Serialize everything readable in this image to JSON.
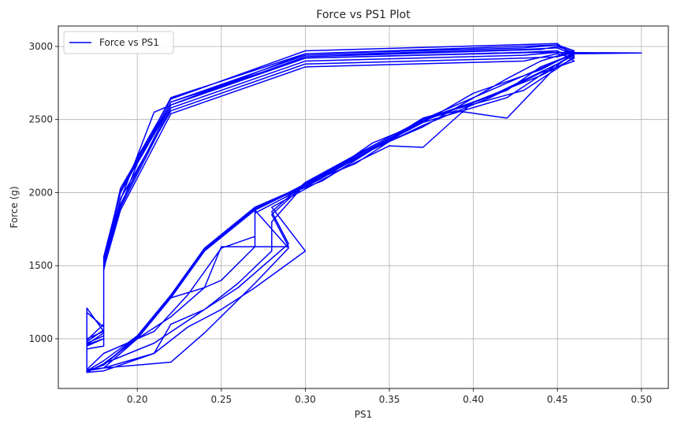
{
  "chart_data": {
    "type": "line",
    "title": "Force vs PS1 Plot",
    "xlabel": "PS1",
    "ylabel": "Force (g)",
    "xlim": [
      0.153,
      0.516
    ],
    "ylim": [
      660,
      3140
    ],
    "xticks": [
      0.2,
      0.25,
      0.3,
      0.35,
      0.4,
      0.45,
      0.5
    ],
    "xtick_labels": [
      "0.20",
      "0.25",
      "0.30",
      "0.35",
      "0.40",
      "0.45",
      "0.50"
    ],
    "yticks": [
      1000,
      1500,
      2000,
      2500,
      3000
    ],
    "ytick_labels": [
      "1000",
      "1500",
      "2000",
      "2500",
      "3000"
    ],
    "grid": true,
    "legend": {
      "position": "top-left",
      "entries": [
        "Force vs PS1"
      ]
    },
    "series": [
      {
        "name": "Force vs PS1",
        "color": "#0000ff",
        "points": [
          [
            0.17,
            780
          ],
          [
            0.17,
            960
          ],
          [
            0.18,
            1000
          ],
          [
            0.18,
            1500
          ],
          [
            0.19,
            1900
          ],
          [
            0.2,
            2200
          ],
          [
            0.22,
            2600
          ],
          [
            0.3,
            2950
          ],
          [
            0.45,
            3010
          ],
          [
            0.46,
            2950
          ],
          [
            0.45,
            2880
          ],
          [
            0.42,
            2650
          ],
          [
            0.37,
            2480
          ],
          [
            0.3,
            2060
          ],
          [
            0.27,
            1880
          ],
          [
            0.24,
            1600
          ],
          [
            0.22,
            1280
          ],
          [
            0.2,
            1000
          ],
          [
            0.18,
            830
          ],
          [
            0.17,
            770
          ],
          [
            0.17,
            800
          ],
          [
            0.17,
            1000
          ],
          [
            0.18,
            1050
          ],
          [
            0.18,
            1550
          ],
          [
            0.19,
            2000
          ],
          [
            0.2,
            2240
          ],
          [
            0.22,
            2640
          ],
          [
            0.3,
            2970
          ],
          [
            0.45,
            3020
          ],
          [
            0.46,
            2930
          ],
          [
            0.45,
            2850
          ],
          [
            0.43,
            2700
          ],
          [
            0.37,
            2510
          ],
          [
            0.31,
            2080
          ],
          [
            0.27,
            1900
          ],
          [
            0.24,
            1620
          ],
          [
            0.22,
            1300
          ],
          [
            0.2,
            1020
          ],
          [
            0.18,
            820
          ],
          [
            0.17,
            780
          ],
          [
            0.17,
            790
          ],
          [
            0.17,
            1210
          ],
          [
            0.18,
            1050
          ],
          [
            0.18,
            1520
          ],
          [
            0.19,
            2030
          ],
          [
            0.22,
            2620
          ],
          [
            0.3,
            2920
          ],
          [
            0.43,
            2960
          ],
          [
            0.45,
            2970
          ],
          [
            0.46,
            2900
          ],
          [
            0.44,
            2820
          ],
          [
            0.41,
            2650
          ],
          [
            0.37,
            2460
          ],
          [
            0.33,
            2240
          ],
          [
            0.3,
            2050
          ],
          [
            0.27,
            1880
          ],
          [
            0.29,
            1620
          ],
          [
            0.27,
            1380
          ],
          [
            0.24,
            1040
          ],
          [
            0.22,
            840
          ],
          [
            0.18,
            800
          ],
          [
            0.17,
            790
          ],
          [
            0.17,
            820
          ],
          [
            0.17,
            990
          ],
          [
            0.18,
            1100
          ],
          [
            0.18,
            1480
          ],
          [
            0.19,
            1880
          ],
          [
            0.22,
            2540
          ],
          [
            0.3,
            2860
          ],
          [
            0.43,
            2900
          ],
          [
            0.45,
            2950
          ],
          [
            0.46,
            2920
          ],
          [
            0.44,
            2800
          ],
          [
            0.4,
            2620
          ],
          [
            0.37,
            2310
          ],
          [
            0.35,
            2320
          ],
          [
            0.32,
            2150
          ],
          [
            0.28,
            1900
          ],
          [
            0.3,
            1600
          ],
          [
            0.27,
            1350
          ],
          [
            0.25,
            1200
          ],
          [
            0.23,
            1080
          ],
          [
            0.21,
            900
          ],
          [
            0.18,
            800
          ],
          [
            0.17,
            790
          ],
          [
            0.17,
            780
          ],
          [
            0.17,
            950
          ],
          [
            0.18,
            1000
          ],
          [
            0.18,
            1530
          ],
          [
            0.19,
            1950
          ],
          [
            0.21,
            2550
          ],
          [
            0.22,
            2600
          ],
          [
            0.3,
            2930
          ],
          [
            0.44,
            2980
          ],
          [
            0.45,
            3000
          ],
          [
            0.46,
            2960
          ],
          [
            0.45,
            2870
          ],
          [
            0.42,
            2510
          ],
          [
            0.39,
            2560
          ],
          [
            0.37,
            2500
          ],
          [
            0.34,
            2320
          ],
          [
            0.3,
            2070
          ],
          [
            0.28,
            1870
          ],
          [
            0.29,
            1650
          ],
          [
            0.26,
            1350
          ],
          [
            0.24,
            1200
          ],
          [
            0.21,
            970
          ],
          [
            0.18,
            830
          ],
          [
            0.17,
            770
          ],
          [
            0.17,
            800
          ],
          [
            0.17,
            980
          ],
          [
            0.18,
            1060
          ],
          [
            0.18,
            1560
          ],
          [
            0.19,
            2010
          ],
          [
            0.22,
            2650
          ],
          [
            0.3,
            2950
          ],
          [
            0.43,
            2990
          ],
          [
            0.45,
            3010
          ],
          [
            0.46,
            2970
          ],
          [
            0.44,
            2900
          ],
          [
            0.42,
            2780
          ],
          [
            0.37,
            2450
          ],
          [
            0.34,
            2300
          ],
          [
            0.31,
            2100
          ],
          [
            0.27,
            1900
          ],
          [
            0.27,
            1630
          ],
          [
            0.25,
            1400
          ],
          [
            0.24,
            1350
          ],
          [
            0.22,
            1150
          ],
          [
            0.2,
            1000
          ],
          [
            0.18,
            800
          ],
          [
            0.17,
            780
          ],
          [
            0.17,
            780
          ],
          [
            0.17,
            930
          ],
          [
            0.18,
            950
          ],
          [
            0.18,
            1480
          ],
          [
            0.19,
            1900
          ],
          [
            0.22,
            2580
          ],
          [
            0.3,
            2900
          ],
          [
            0.43,
            2940
          ],
          [
            0.45,
            2960
          ],
          [
            0.46,
            2950
          ],
          [
            0.44,
            2860
          ],
          [
            0.42,
            2700
          ],
          [
            0.37,
            2490
          ],
          [
            0.33,
            2250
          ],
          [
            0.3,
            2060
          ],
          [
            0.28,
            1800
          ],
          [
            0.28,
            1600
          ],
          [
            0.26,
            1380
          ],
          [
            0.24,
            1200
          ],
          [
            0.22,
            1100
          ],
          [
            0.21,
            900
          ],
          [
            0.18,
            780
          ],
          [
            0.17,
            770
          ],
          [
            0.17,
            770
          ],
          [
            0.17,
            1180
          ],
          [
            0.18,
            1080
          ],
          [
            0.18,
            1500
          ],
          [
            0.19,
            1920
          ],
          [
            0.22,
            2600
          ],
          [
            0.3,
            2920
          ],
          [
            0.44,
            2960
          ],
          [
            0.5,
            2955
          ],
          [
            0.46,
            2950
          ],
          [
            0.45,
            2900
          ],
          [
            0.43,
            2800
          ],
          [
            0.37,
            2500
          ],
          [
            0.33,
            2200
          ],
          [
            0.3,
            2060
          ],
          [
            0.28,
            1850
          ],
          [
            0.29,
            1630
          ],
          [
            0.25,
            1630
          ],
          [
            0.24,
            1350
          ],
          [
            0.22,
            1280
          ],
          [
            0.2,
            1020
          ],
          [
            0.18,
            850
          ],
          [
            0.17,
            780
          ],
          [
            0.17,
            790
          ],
          [
            0.17,
            970
          ],
          [
            0.18,
            1020
          ],
          [
            0.18,
            1470
          ],
          [
            0.19,
            1960
          ],
          [
            0.22,
            2560
          ],
          [
            0.3,
            2880
          ],
          [
            0.43,
            2920
          ],
          [
            0.45,
            2930
          ],
          [
            0.46,
            2960
          ],
          [
            0.44,
            2840
          ],
          [
            0.4,
            2680
          ],
          [
            0.37,
            2480
          ],
          [
            0.34,
            2340
          ],
          [
            0.31,
            2100
          ],
          [
            0.27,
            1860
          ],
          [
            0.27,
            1700
          ],
          [
            0.25,
            1620
          ],
          [
            0.23,
            1300
          ],
          [
            0.21,
            1050
          ],
          [
            0.18,
            900
          ],
          [
            0.17,
            790
          ],
          [
            0.17,
            800
          ],
          [
            0.17,
            960
          ],
          [
            0.18,
            1040
          ],
          [
            0.18,
            1520
          ],
          [
            0.19,
            2000
          ],
          [
            0.22,
            2620
          ],
          [
            0.3,
            2940
          ],
          [
            0.43,
            2980
          ],
          [
            0.45,
            2990
          ],
          [
            0.46,
            2940
          ],
          [
            0.45,
            2880
          ],
          [
            0.41,
            2660
          ],
          [
            0.37,
            2500
          ],
          [
            0.33,
            2230
          ],
          [
            0.3,
            2050
          ],
          [
            0.27,
            1890
          ],
          [
            0.24,
            1610
          ],
          [
            0.22,
            1290
          ],
          [
            0.2,
            1010
          ],
          [
            0.18,
            820
          ],
          [
            0.17,
            780
          ]
        ]
      }
    ]
  }
}
